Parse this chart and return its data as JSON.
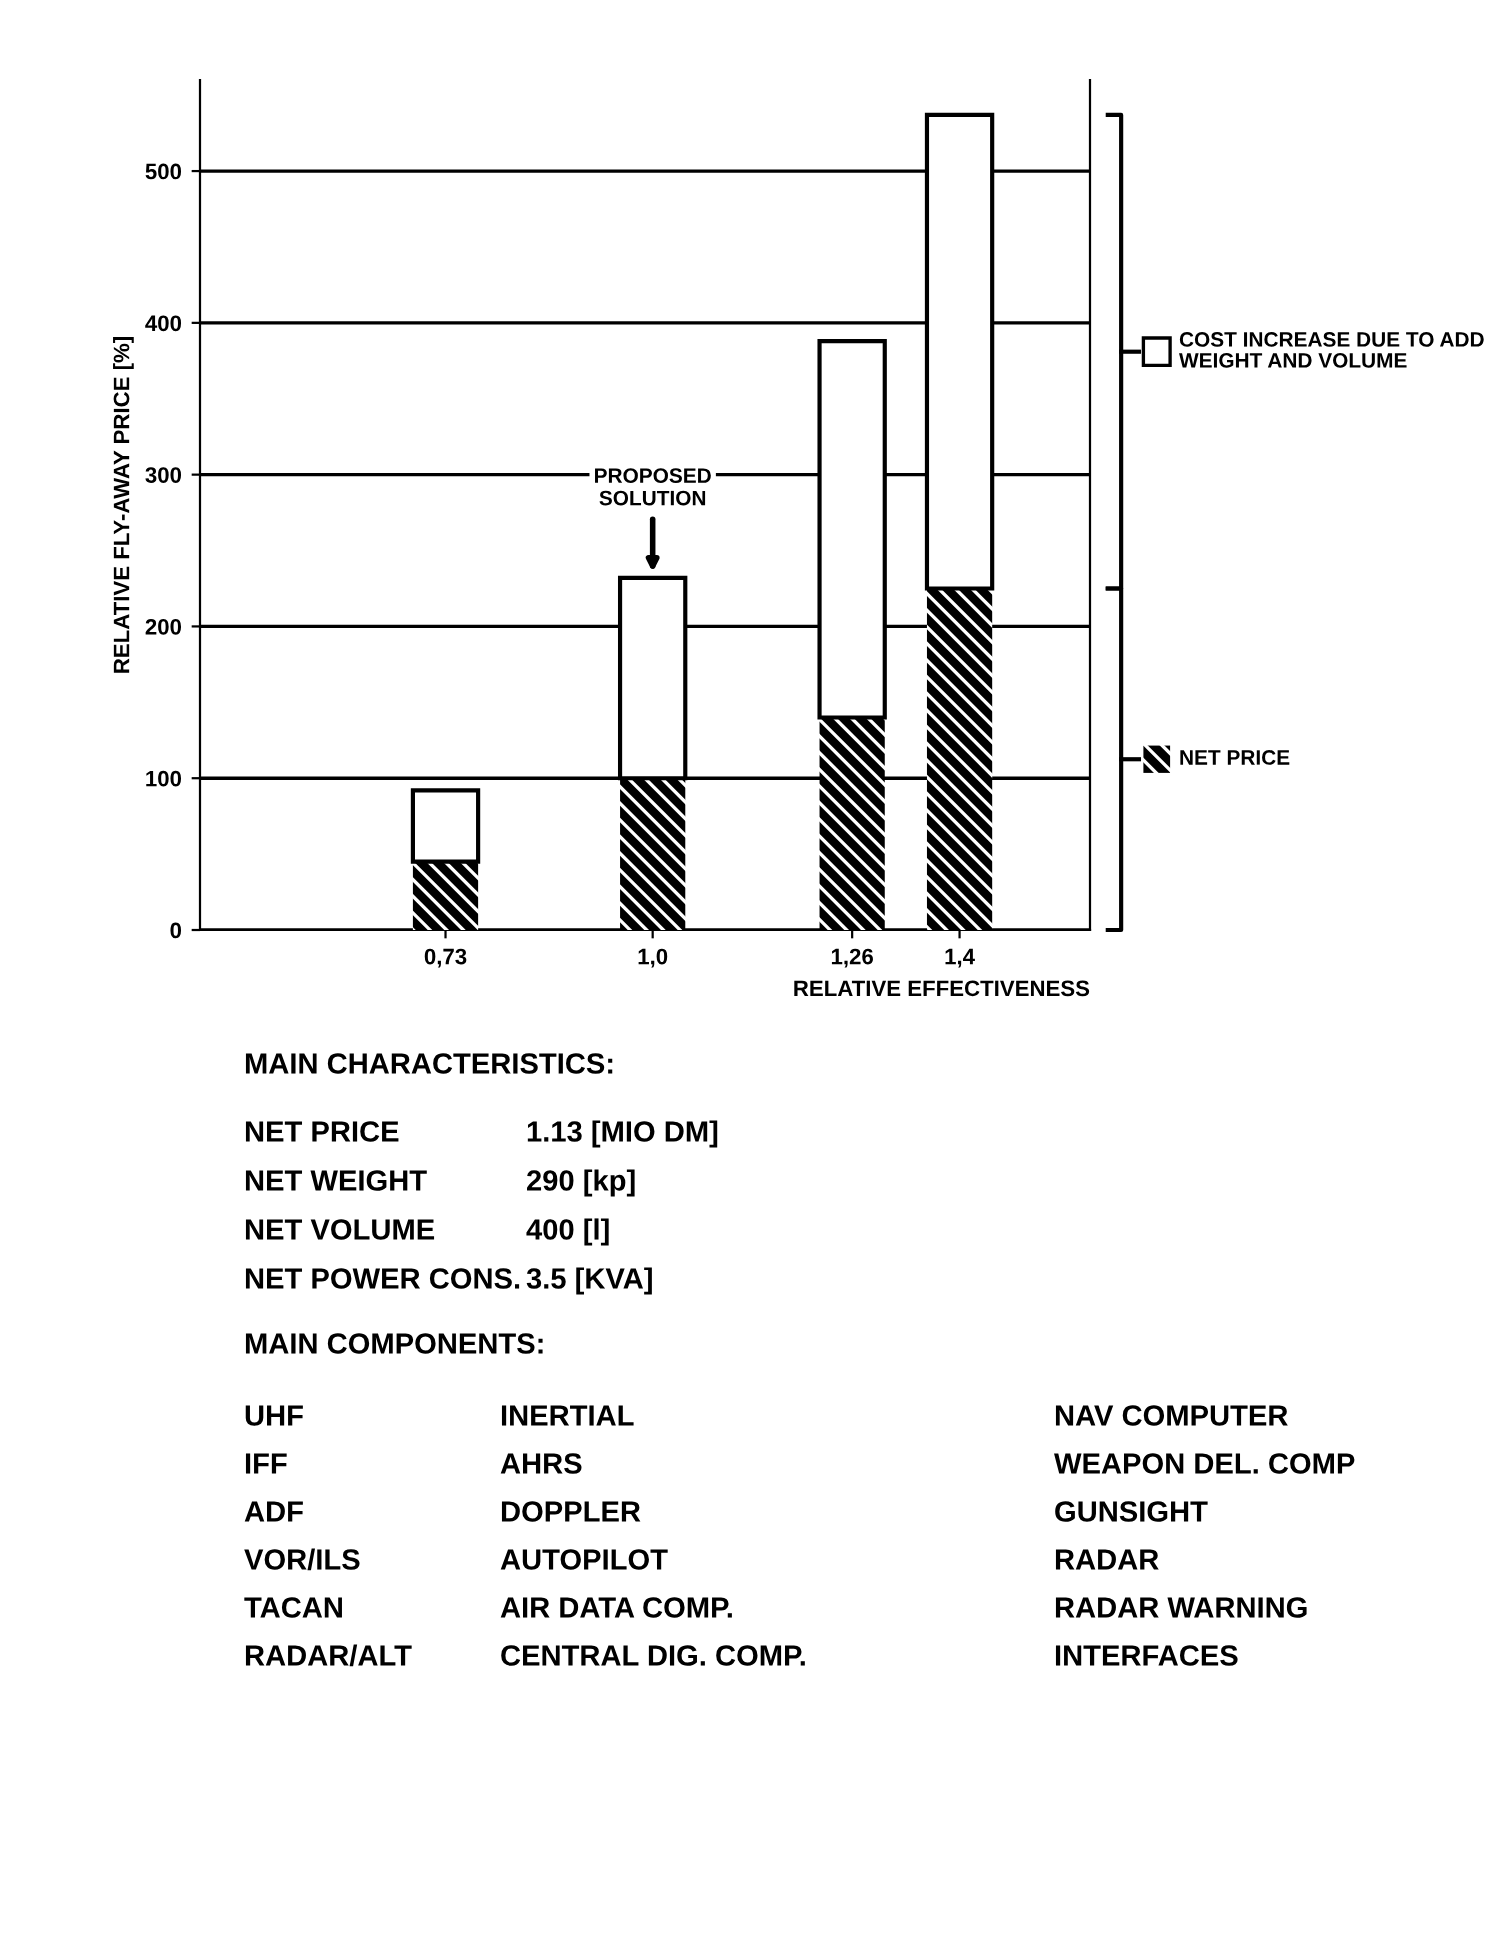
{
  "chart_data": {
    "type": "bar",
    "stacked": true,
    "xlabel": "RELATIVE EFFECTIVENESS",
    "ylabel": "RELATIVE FLY-AWAY PRICE [%]",
    "x": [
      0.73,
      1.0,
      1.26,
      1.4
    ],
    "series": [
      {
        "name": "NET PRICE",
        "color": "#000000",
        "values": [
          45,
          100,
          140,
          225
        ]
      },
      {
        "name": "COST INCREASE DUE TO ADD WEIGHT AND VOLUME",
        "color": "#ffffff",
        "values": [
          47,
          132,
          248,
          312
        ]
      }
    ],
    "xlim": [
      0.41,
      1.57
    ],
    "xticks": [
      {
        "value": 0.73,
        "label": "0,73"
      },
      {
        "value": 1.0,
        "label": "1,0"
      },
      {
        "value": 1.26,
        "label": "1,26"
      },
      {
        "value": 1.4,
        "label": "1,4"
      }
    ],
    "ylim": [
      0,
      560
    ],
    "yticks": [
      0,
      100,
      200,
      300,
      400,
      500
    ],
    "grid": "y",
    "legend": "right",
    "annotations": [
      {
        "text": "PROPOSED\nSOLUTION",
        "x": 1.0,
        "y": 232
      },
      "MAIN CHARACTERISTICS:",
      "NET PRICE",
      "1.13 [MIO DM]",
      "NET WEIGHT",
      "290 [kp]",
      "NET VOLUME",
      "400 [l]",
      "NET POWER CONS.",
      "3.5 [KVA]",
      "MAIN COMPONENTS:",
      "UHF",
      "INERTIAL",
      "NAV COMPUTER",
      "IFF",
      "AHRS",
      "WEAPON DEL. COMP",
      "ADF",
      "DOPPLER",
      "GUNSIGHT",
      "VOR/ILS",
      "AUTOPILOT",
      "RADAR",
      "TACAN",
      "AIR DATA COMP.",
      "RADAR WARNING",
      "RADAR/ALT",
      "CENTRAL DIG. COMP.",
      "INTERFACES"
    ]
  }
}
